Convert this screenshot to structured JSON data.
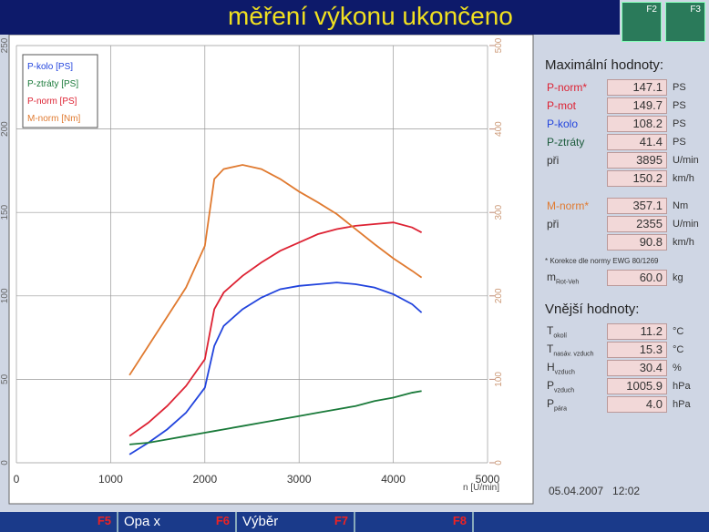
{
  "header": {
    "title": "měření výkonu ukončeno",
    "keys": [
      "F2",
      "F3"
    ]
  },
  "chart_data": {
    "type": "line",
    "x": [
      1200,
      1400,
      1600,
      1800,
      2000,
      2100,
      2200,
      2400,
      2600,
      2800,
      3000,
      3200,
      3400,
      3600,
      3800,
      4000,
      4200,
      4300
    ],
    "series": [
      {
        "name": "P-kolo [PS]",
        "color": "#2244dd",
        "values": [
          5,
          12,
          20,
          30,
          45,
          70,
          82,
          92,
          99,
          104,
          106,
          107,
          108,
          107,
          105,
          101,
          95,
          90
        ]
      },
      {
        "name": "P-ztráty [PS]",
        "color": "#1a7a3a",
        "values": [
          11,
          12,
          14,
          16,
          18,
          19,
          20,
          22,
          24,
          26,
          28,
          30,
          32,
          34,
          37,
          39,
          42,
          43
        ]
      },
      {
        "name": "P-norm [PS]",
        "color": "#dd2233",
        "values": [
          16,
          24,
          34,
          46,
          62,
          92,
          102,
          112,
          120,
          127,
          132,
          137,
          140,
          142,
          143,
          144,
          141,
          138
        ]
      },
      {
        "name": "M-norm [Nm]",
        "color": "#e07a30",
        "axis": "y2",
        "values": [
          105,
          140,
          175,
          210,
          260,
          340,
          352,
          357,
          352,
          340,
          325,
          312,
          298,
          280,
          262,
          245,
          230,
          222
        ]
      }
    ],
    "x_label": "n [U/min]",
    "xlim": [
      0,
      5000
    ],
    "xticks": [
      0,
      1000,
      2000,
      3000,
      4000,
      5000
    ],
    "ylim": [
      0,
      250
    ],
    "yticks": [
      0,
      50,
      100,
      150,
      200,
      250
    ],
    "y2lim": [
      0,
      500
    ],
    "y2ticks": [
      0,
      100,
      200,
      300,
      400,
      500
    ],
    "grid": true,
    "legend": "upper left"
  },
  "panel": {
    "max_title": "Maximální hodnoty:",
    "max_rows": [
      {
        "label": "P-norm*",
        "color": "#dd2233",
        "value": "147.1",
        "unit": "PS"
      },
      {
        "label": "P-mot",
        "color": "#dd2233",
        "value": "149.7",
        "unit": "PS"
      },
      {
        "label": "P-kolo",
        "color": "#2244dd",
        "value": "108.2",
        "unit": "PS"
      },
      {
        "label": "P-ztráty",
        "color": "#1a5a3a",
        "value": "41.4",
        "unit": "PS"
      },
      {
        "label": "při",
        "color": "#333333",
        "value": "3895",
        "unit": "U/min"
      },
      {
        "value": "150.2",
        "unit": "km/h"
      },
      {
        "label": "M-norm*",
        "color": "#e07a30",
        "value": "357.1",
        "unit": "Nm"
      },
      {
        "label": "při",
        "color": "#333333",
        "value": "2355",
        "unit": "U/min"
      },
      {
        "value": "90.8",
        "unit": "km/h"
      }
    ],
    "note": "* Korekce dle normy EWG 80/1269",
    "mass": {
      "label": "m",
      "sub": "Rot-Veh",
      "value": "60.0",
      "unit": "kg"
    },
    "ext_title": "Vnější hodnoty:",
    "ext_rows": [
      {
        "label": "T",
        "sub": "okolí",
        "value": "11.2",
        "unit": "°C"
      },
      {
        "label": "T",
        "sub": "nasáv. vzduch",
        "value": "15.3",
        "unit": "°C"
      },
      {
        "label": "H",
        "sub": "vzduch",
        "value": "30.4",
        "unit": "%"
      },
      {
        "label": "P",
        "sub": "vzduch",
        "value": "1005.9",
        "unit": "hPa"
      },
      {
        "label": "P",
        "sub": "pára",
        "value": "4.0",
        "unit": "hPa"
      }
    ],
    "datetime": "05.04.2007   12:02"
  },
  "footer": {
    "keys": [
      {
        "key": "F5"
      },
      {
        "label": "Opa x",
        "key": "F6"
      },
      {
        "label": "Výběr",
        "key": "F7"
      },
      {
        "key": "F8"
      }
    ]
  }
}
